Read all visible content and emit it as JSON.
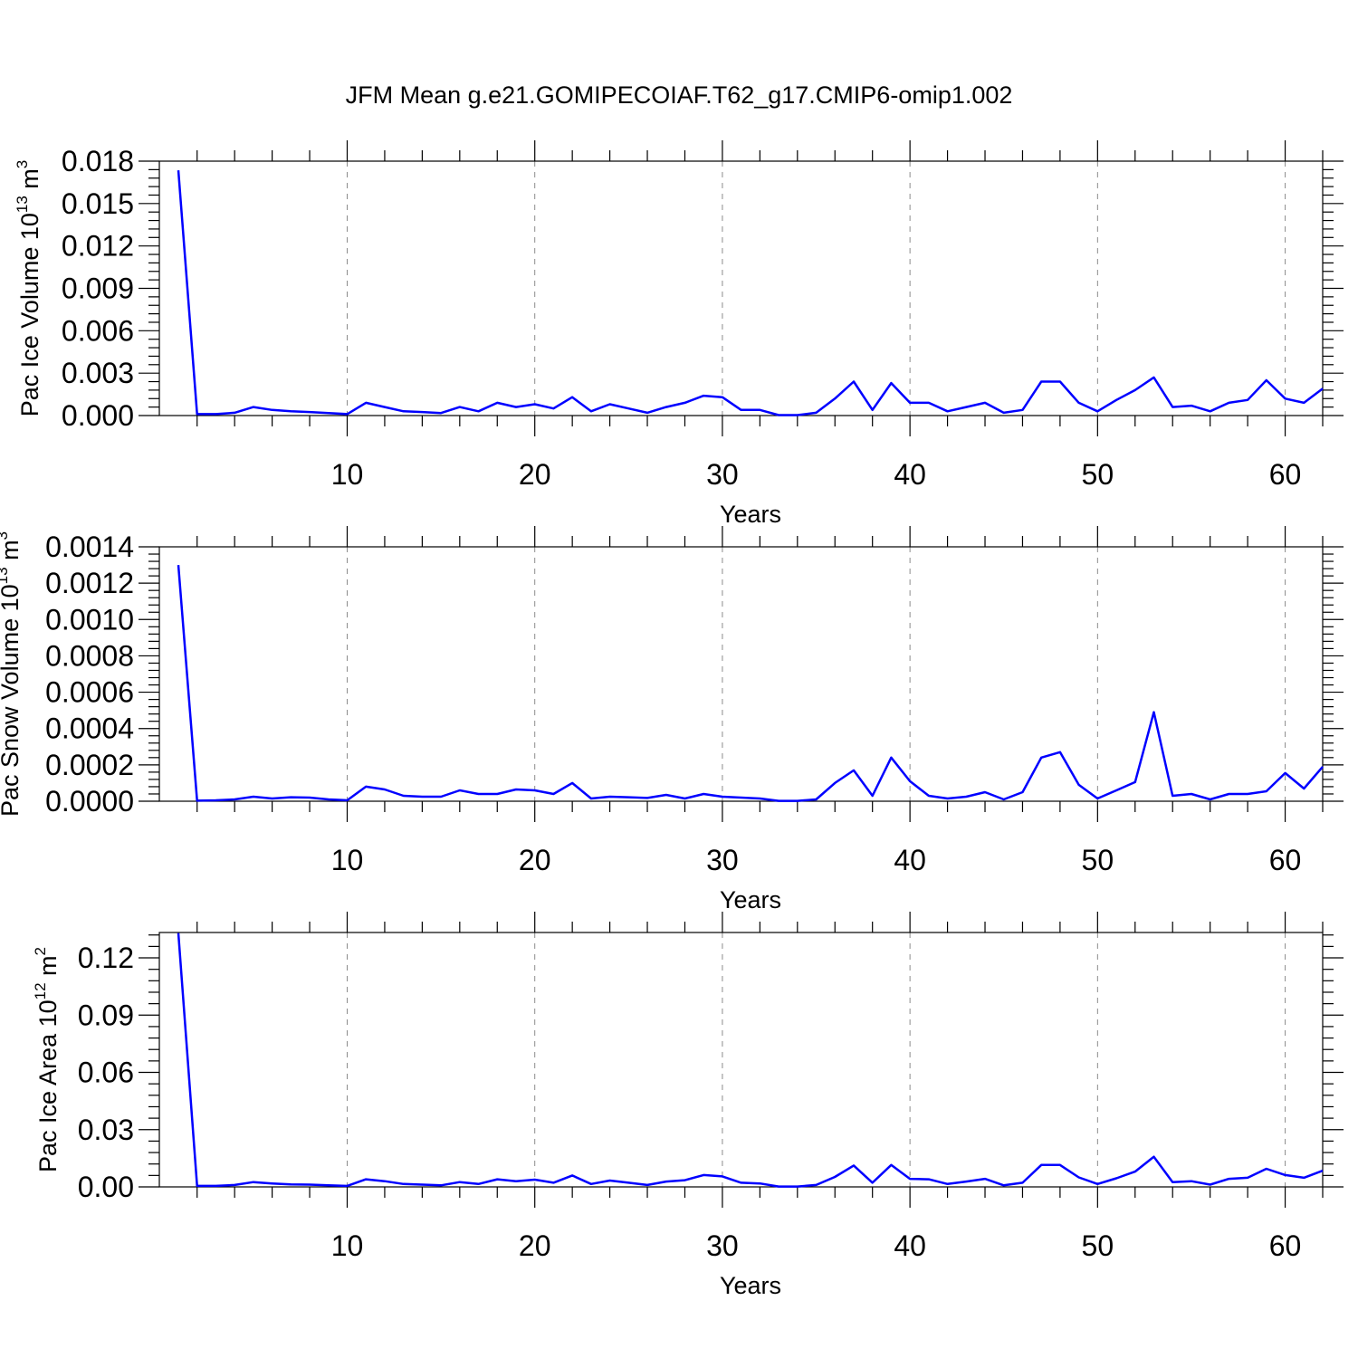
{
  "title": "JFM Mean g.e21.GOMIPECOIAF.T62_g17.CMIP6-omip1.002",
  "colors": {
    "line": "#0000ff",
    "grid": "#8c8c8c",
    "axis": "#000000"
  },
  "chart_data": [
    {
      "type": "line",
      "xlabel": "Years",
      "ylabel": {
        "text": "Pac Ice Volume 10",
        "sup": "13",
        "unit": " m",
        "unit_sup": "3"
      },
      "xlim": [
        1,
        62
      ],
      "ylim": [
        0,
        0.018
      ],
      "xticks": [
        10,
        20,
        30,
        40,
        50,
        60
      ],
      "xtick_labels": [
        "10",
        "20",
        "30",
        "40",
        "50",
        "60"
      ],
      "yticks": [
        0,
        0.003,
        0.006,
        0.009,
        0.012,
        0.015,
        0.018
      ],
      "ytick_labels": [
        "0.000",
        "0.003",
        "0.006",
        "0.009",
        "0.012",
        "0.015",
        "0.018"
      ],
      "grid": "vertical dashed at x ticks",
      "series": [
        {
          "x": [
            1,
            2,
            3,
            4,
            5,
            6,
            7,
            8,
            9,
            10,
            11,
            12,
            13,
            14,
            15,
            16,
            17,
            18,
            19,
            20,
            21,
            22,
            23,
            24,
            25,
            26,
            27,
            28,
            29,
            30,
            31,
            32,
            33,
            34,
            35,
            36,
            37,
            38,
            39,
            40,
            41,
            42,
            43,
            44,
            45,
            46,
            47,
            48,
            49,
            50,
            51,
            52,
            53,
            54,
            55,
            56,
            57,
            58,
            59,
            60,
            61,
            62
          ],
          "values": [
            0.01735,
            0.0001,
            0.0001,
            0.0002,
            0.0006,
            0.0004,
            0.0003,
            0.00025,
            0.00018,
            0.0001,
            0.0009,
            0.0006,
            0.0003,
            0.00025,
            0.00018,
            0.0006,
            0.0003,
            0.0009,
            0.0006,
            0.0008,
            0.0005,
            0.0013,
            0.0003,
            0.0008,
            0.0005,
            0.0002,
            0.0006,
            0.0009,
            0.0014,
            0.0013,
            0.0004,
            0.0004,
            3e-05,
            3e-05,
            0.0002,
            0.0012,
            0.0024,
            0.0004,
            0.0023,
            0.0009,
            0.0009,
            0.0003,
            0.0006,
            0.0009,
            0.0002,
            0.0004,
            0.0024,
            0.0024,
            0.0009,
            0.0003,
            0.0011,
            0.0018,
            0.0027,
            0.0006,
            0.0007,
            0.0003,
            0.0009,
            0.0011,
            0.0025,
            0.0012,
            0.0009,
            0.0019
          ]
        }
      ]
    },
    {
      "type": "line",
      "xlabel": "Years",
      "ylabel": {
        "text": "Pac Snow Volume 10",
        "sup": "13",
        "unit": " m",
        "unit_sup": "3"
      },
      "xlim": [
        1,
        62
      ],
      "ylim": [
        0,
        0.0014
      ],
      "xticks": [
        10,
        20,
        30,
        40,
        50,
        60
      ],
      "xtick_labels": [
        "10",
        "20",
        "30",
        "40",
        "50",
        "60"
      ],
      "yticks": [
        0,
        0.0002,
        0.0004,
        0.0006,
        0.0008,
        0.001,
        0.0012,
        0.0014
      ],
      "ytick_labels": [
        "0.0000",
        "0.0002",
        "0.0004",
        "0.0006",
        "0.0008",
        "0.0010",
        "0.0012",
        "0.0014"
      ],
      "grid": "vertical dashed at x ticks",
      "series": [
        {
          "x": [
            1,
            2,
            3,
            4,
            5,
            6,
            7,
            8,
            9,
            10,
            11,
            12,
            13,
            14,
            15,
            16,
            17,
            18,
            19,
            20,
            21,
            22,
            23,
            24,
            25,
            26,
            27,
            28,
            29,
            30,
            31,
            32,
            33,
            34,
            35,
            36,
            37,
            38,
            39,
            40,
            41,
            42,
            43,
            44,
            45,
            46,
            47,
            48,
            49,
            50,
            51,
            52,
            53,
            54,
            55,
            56,
            57,
            58,
            59,
            60,
            61,
            62
          ],
          "values": [
            0.0013,
            3e-06,
            5e-06,
            1e-05,
            2.5e-05,
            1.5e-05,
            2.2e-05,
            2e-05,
            1e-05,
            5e-06,
            8e-05,
            6.5e-05,
            3e-05,
            2.5e-05,
            2.5e-05,
            6e-05,
            4e-05,
            4e-05,
            6.5e-05,
            6e-05,
            4e-05,
            0.0001,
            1.5e-05,
            2.5e-05,
            2.2e-05,
            1.8e-05,
            3.5e-05,
            1.5e-05,
            4e-05,
            2.5e-05,
            2e-05,
            1.5e-05,
            2e-06,
            2e-06,
            1e-05,
            0.0001,
            0.00017,
            3e-05,
            0.00024,
            0.00011,
            3e-05,
            1.5e-05,
            2.5e-05,
            5e-05,
            1e-05,
            5e-05,
            0.00024,
            0.00027,
            9e-05,
            1.5e-05,
            6e-05,
            0.000105,
            0.00049,
            3e-05,
            4e-05,
            1e-05,
            4e-05,
            4e-05,
            5.5e-05,
            0.000155,
            7e-05,
            0.00019
          ]
        }
      ]
    },
    {
      "type": "line",
      "xlabel": "Years",
      "ylabel": {
        "text": "Pac Ice Area 10",
        "sup": "12",
        "unit": " m",
        "unit_sup": "2"
      },
      "xlim": [
        1,
        62
      ],
      "ylim": [
        0,
        0.1333
      ],
      "xticks": [
        10,
        20,
        30,
        40,
        50,
        60
      ],
      "xtick_labels": [
        "10",
        "20",
        "30",
        "40",
        "50",
        "60"
      ],
      "yticks": [
        0,
        0.03,
        0.06,
        0.09,
        0.12
      ],
      "ytick_labels": [
        "0.00",
        "0.03",
        "0.06",
        "0.09",
        "0.12"
      ],
      "grid": "vertical dashed at x ticks",
      "series": [
        {
          "x": [
            1,
            2,
            3,
            4,
            5,
            6,
            7,
            8,
            9,
            10,
            11,
            12,
            13,
            14,
            15,
            16,
            17,
            18,
            19,
            20,
            21,
            22,
            23,
            24,
            25,
            26,
            27,
            28,
            29,
            30,
            31,
            32,
            33,
            34,
            35,
            36,
            37,
            38,
            39,
            40,
            41,
            42,
            43,
            44,
            45,
            46,
            47,
            48,
            49,
            50,
            51,
            52,
            53,
            54,
            55,
            56,
            57,
            58,
            59,
            60,
            61,
            62
          ],
          "values": [
            0.133,
            0.0005,
            0.0005,
            0.001,
            0.0025,
            0.0018,
            0.0013,
            0.0012,
            0.0008,
            0.0005,
            0.004,
            0.003,
            0.0015,
            0.0012,
            0.0008,
            0.0025,
            0.0015,
            0.004,
            0.003,
            0.0038,
            0.0022,
            0.006,
            0.0015,
            0.0033,
            0.0022,
            0.001,
            0.0028,
            0.0035,
            0.0062,
            0.0055,
            0.0022,
            0.0018,
            0.0002,
            0.0002,
            0.001,
            0.0052,
            0.0112,
            0.0022,
            0.0115,
            0.0042,
            0.004,
            0.0015,
            0.0028,
            0.0042,
            0.0008,
            0.0022,
            0.0115,
            0.0115,
            0.005,
            0.0015,
            0.0045,
            0.008,
            0.0158,
            0.0025,
            0.003,
            0.0012,
            0.0042,
            0.0048,
            0.0095,
            0.0062,
            0.0048,
            0.0085
          ]
        }
      ]
    }
  ]
}
